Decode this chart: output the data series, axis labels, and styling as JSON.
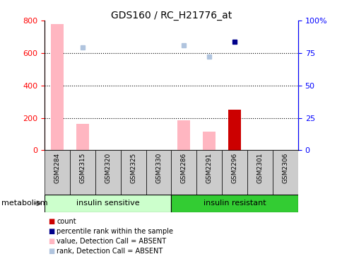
{
  "title": "GDS160 / RC_H21776_at",
  "samples": [
    "GSM2284",
    "GSM2315",
    "GSM2320",
    "GSM2325",
    "GSM2330",
    "GSM2286",
    "GSM2291",
    "GSM2296",
    "GSM2301",
    "GSM2306"
  ],
  "n_samples": 10,
  "group1_label": "insulin sensitive",
  "group2_label": "insulin resistant",
  "group1_count": 5,
  "group2_count": 5,
  "value_absent": [
    780,
    165,
    null,
    null,
    null,
    185,
    115,
    null,
    null,
    null
  ],
  "rank_absent": [
    null,
    635,
    null,
    null,
    null,
    648,
    580,
    null,
    null,
    null
  ],
  "count_value": [
    null,
    null,
    null,
    null,
    null,
    null,
    null,
    250,
    null,
    null
  ],
  "percentile_rank": [
    null,
    null,
    null,
    null,
    null,
    null,
    null,
    670,
    null,
    null
  ],
  "ylim_left": [
    0,
    800
  ],
  "yticks_left": [
    0,
    200,
    400,
    600,
    800
  ],
  "ytick_labels_right": [
    "0",
    "25",
    "50",
    "75",
    "100%"
  ],
  "right_axis_values": [
    0,
    200,
    400,
    600,
    800
  ],
  "color_value_absent": "#FFB6C1",
  "color_rank_absent": "#B0C4DE",
  "color_count": "#CC0000",
  "color_percentile": "#00008B",
  "group1_bg": "#CCFFCC",
  "group2_bg": "#33CC33",
  "sample_bg": "#CCCCCC",
  "bar_width": 0.5,
  "metabolism_label": "metabolism",
  "legend_items": [
    {
      "label": "count",
      "color": "#CC0000"
    },
    {
      "label": "percentile rank within the sample",
      "color": "#00008B"
    },
    {
      "label": "value, Detection Call = ABSENT",
      "color": "#FFB6C1"
    },
    {
      "label": "rank, Detection Call = ABSENT",
      "color": "#B0C4DE"
    }
  ]
}
